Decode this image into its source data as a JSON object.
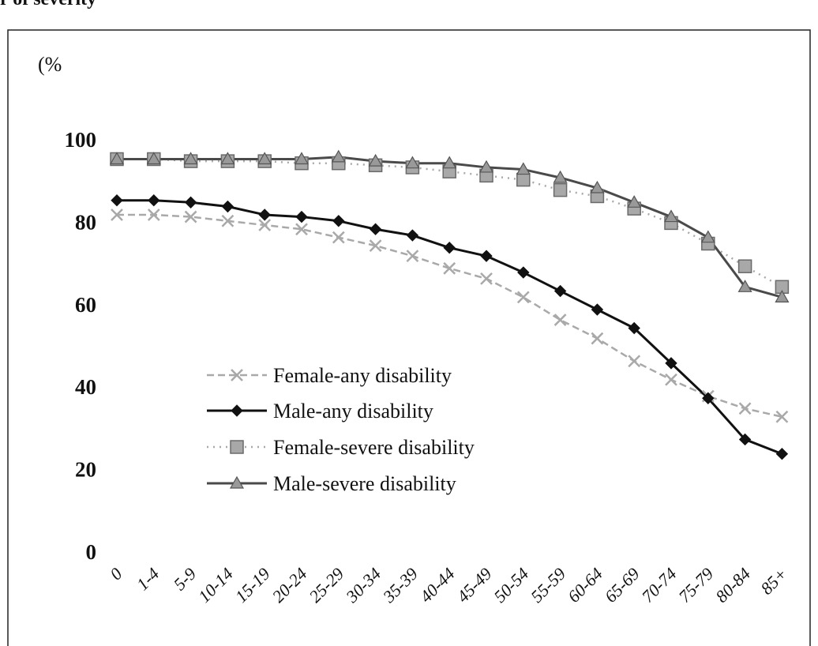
{
  "caption": "r of severity",
  "chart_data": {
    "type": "line",
    "ylabel": "(%",
    "ylim": [
      0,
      100
    ],
    "yticks": [
      0,
      20,
      40,
      60,
      80,
      100
    ],
    "grid": false,
    "legend_position": "center-left",
    "categories": [
      "0",
      "1-4",
      "5-9",
      "10-14",
      "15-19",
      "20-24",
      "25-29",
      "30-34",
      "35-39",
      "40-44",
      "45-49",
      "50-54",
      "55-59",
      "60-64",
      "65-69",
      "70-74",
      "75-79",
      "80-84",
      "85+"
    ],
    "series": [
      {
        "name": "Female-any disability",
        "color": "#a9a9a9",
        "style": "dash",
        "marker": "x",
        "values": [
          82,
          82,
          81.5,
          80.5,
          79.5,
          78.5,
          76.5,
          74.5,
          72,
          69,
          66.5,
          62,
          56.5,
          52,
          46.5,
          42,
          38,
          35,
          33
        ]
      },
      {
        "name": "Male-any disability",
        "color": "#111111",
        "style": "solid",
        "marker": "diamond",
        "values": [
          85.5,
          85.5,
          85,
          84,
          82,
          81.5,
          80.5,
          78.5,
          77,
          74,
          72,
          68,
          63.5,
          59,
          54.5,
          46,
          37.5,
          27.5,
          24
        ]
      },
      {
        "name": "Female-severe disability",
        "color": "#a9a9a9",
        "style": "dot",
        "marker": "square",
        "values": [
          95.5,
          95.5,
          95,
          95,
          95,
          94.5,
          94.5,
          94,
          93.5,
          92.5,
          91.5,
          90.5,
          88,
          86.5,
          83.5,
          80,
          75,
          69.5,
          64.5
        ]
      },
      {
        "name": "Male-severe disability",
        "color": "#4a4a4a",
        "style": "solid",
        "marker": "triangle",
        "values": [
          95.5,
          95.5,
          95.5,
          95.5,
          95.5,
          95.5,
          96,
          95,
          94.5,
          94.5,
          93.5,
          93,
          91,
          88.5,
          85,
          81.5,
          76.5,
          64.5,
          62
        ]
      }
    ]
  }
}
